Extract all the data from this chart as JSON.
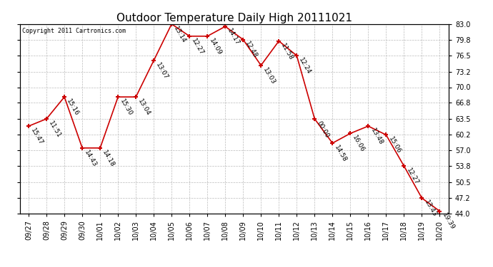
{
  "title": "Outdoor Temperature Daily High 20111021",
  "copyright_text": "Copyright 2011 Cartronics.com",
  "line_color": "#cc0000",
  "marker_color": "#cc0000",
  "background_color": "#ffffff",
  "grid_color": "#bbbbbb",
  "dates": [
    "09/27",
    "09/28",
    "09/29",
    "09/30",
    "10/01",
    "10/02",
    "10/03",
    "10/04",
    "10/05",
    "10/06",
    "10/07",
    "10/08",
    "10/09",
    "10/10",
    "10/11",
    "10/12",
    "10/13",
    "10/14",
    "10/15",
    "10/16",
    "10/17",
    "10/18",
    "10/19",
    "10/20"
  ],
  "temperatures": [
    62.0,
    63.5,
    68.0,
    57.5,
    57.5,
    68.0,
    68.0,
    75.5,
    83.0,
    80.5,
    80.5,
    82.5,
    79.8,
    74.5,
    79.5,
    76.5,
    63.5,
    58.5,
    60.5,
    62.0,
    60.2,
    53.8,
    47.2,
    44.5
  ],
  "time_labels": [
    "15:47",
    "11:51",
    "15:16",
    "14:43",
    "14:18",
    "15:30",
    "13:04",
    "13:07",
    "13:14",
    "12:27",
    "14:09",
    "14:17",
    "12:48",
    "13:03",
    "11:58",
    "12:24",
    "00:00",
    "14:58",
    "16:06",
    "13:48",
    "15:06",
    "12:27",
    "13:43",
    "19:39"
  ],
  "ylim": [
    44.0,
    83.0
  ],
  "yticks": [
    44.0,
    47.2,
    50.5,
    53.8,
    57.0,
    60.2,
    63.5,
    66.8,
    70.0,
    73.2,
    76.5,
    79.8,
    83.0
  ],
  "title_fontsize": 11,
  "tick_fontsize": 7,
  "label_fontsize": 6.5,
  "copyright_fontsize": 6
}
